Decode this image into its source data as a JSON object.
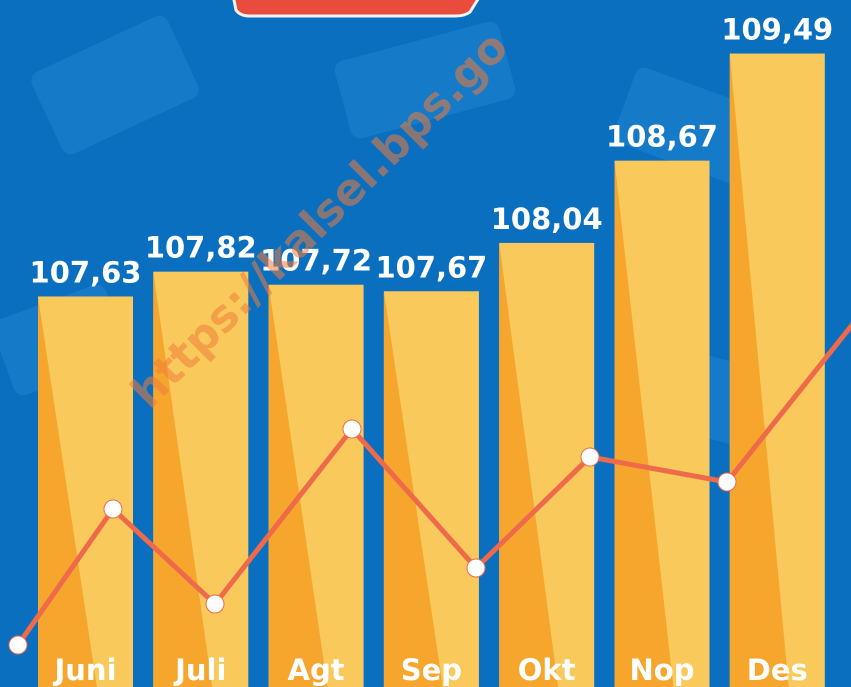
{
  "chart_data": {
    "type": "bar",
    "categories": [
      "Juni",
      "Juli",
      "Agt",
      "Sep",
      "Okt",
      "Nop",
      "Des"
    ],
    "values": [
      107.63,
      107.82,
      107.72,
      107.67,
      108.04,
      108.67,
      109.49
    ],
    "value_labels": [
      "107,63",
      "107,82",
      "107,72",
      "107,67",
      "108,04",
      "108,67",
      "109,49"
    ],
    "color": "#f9c95b",
    "ylim": [
      104.64,
      109.9
    ],
    "watermark": "https://kalsel.bps.go"
  }
}
